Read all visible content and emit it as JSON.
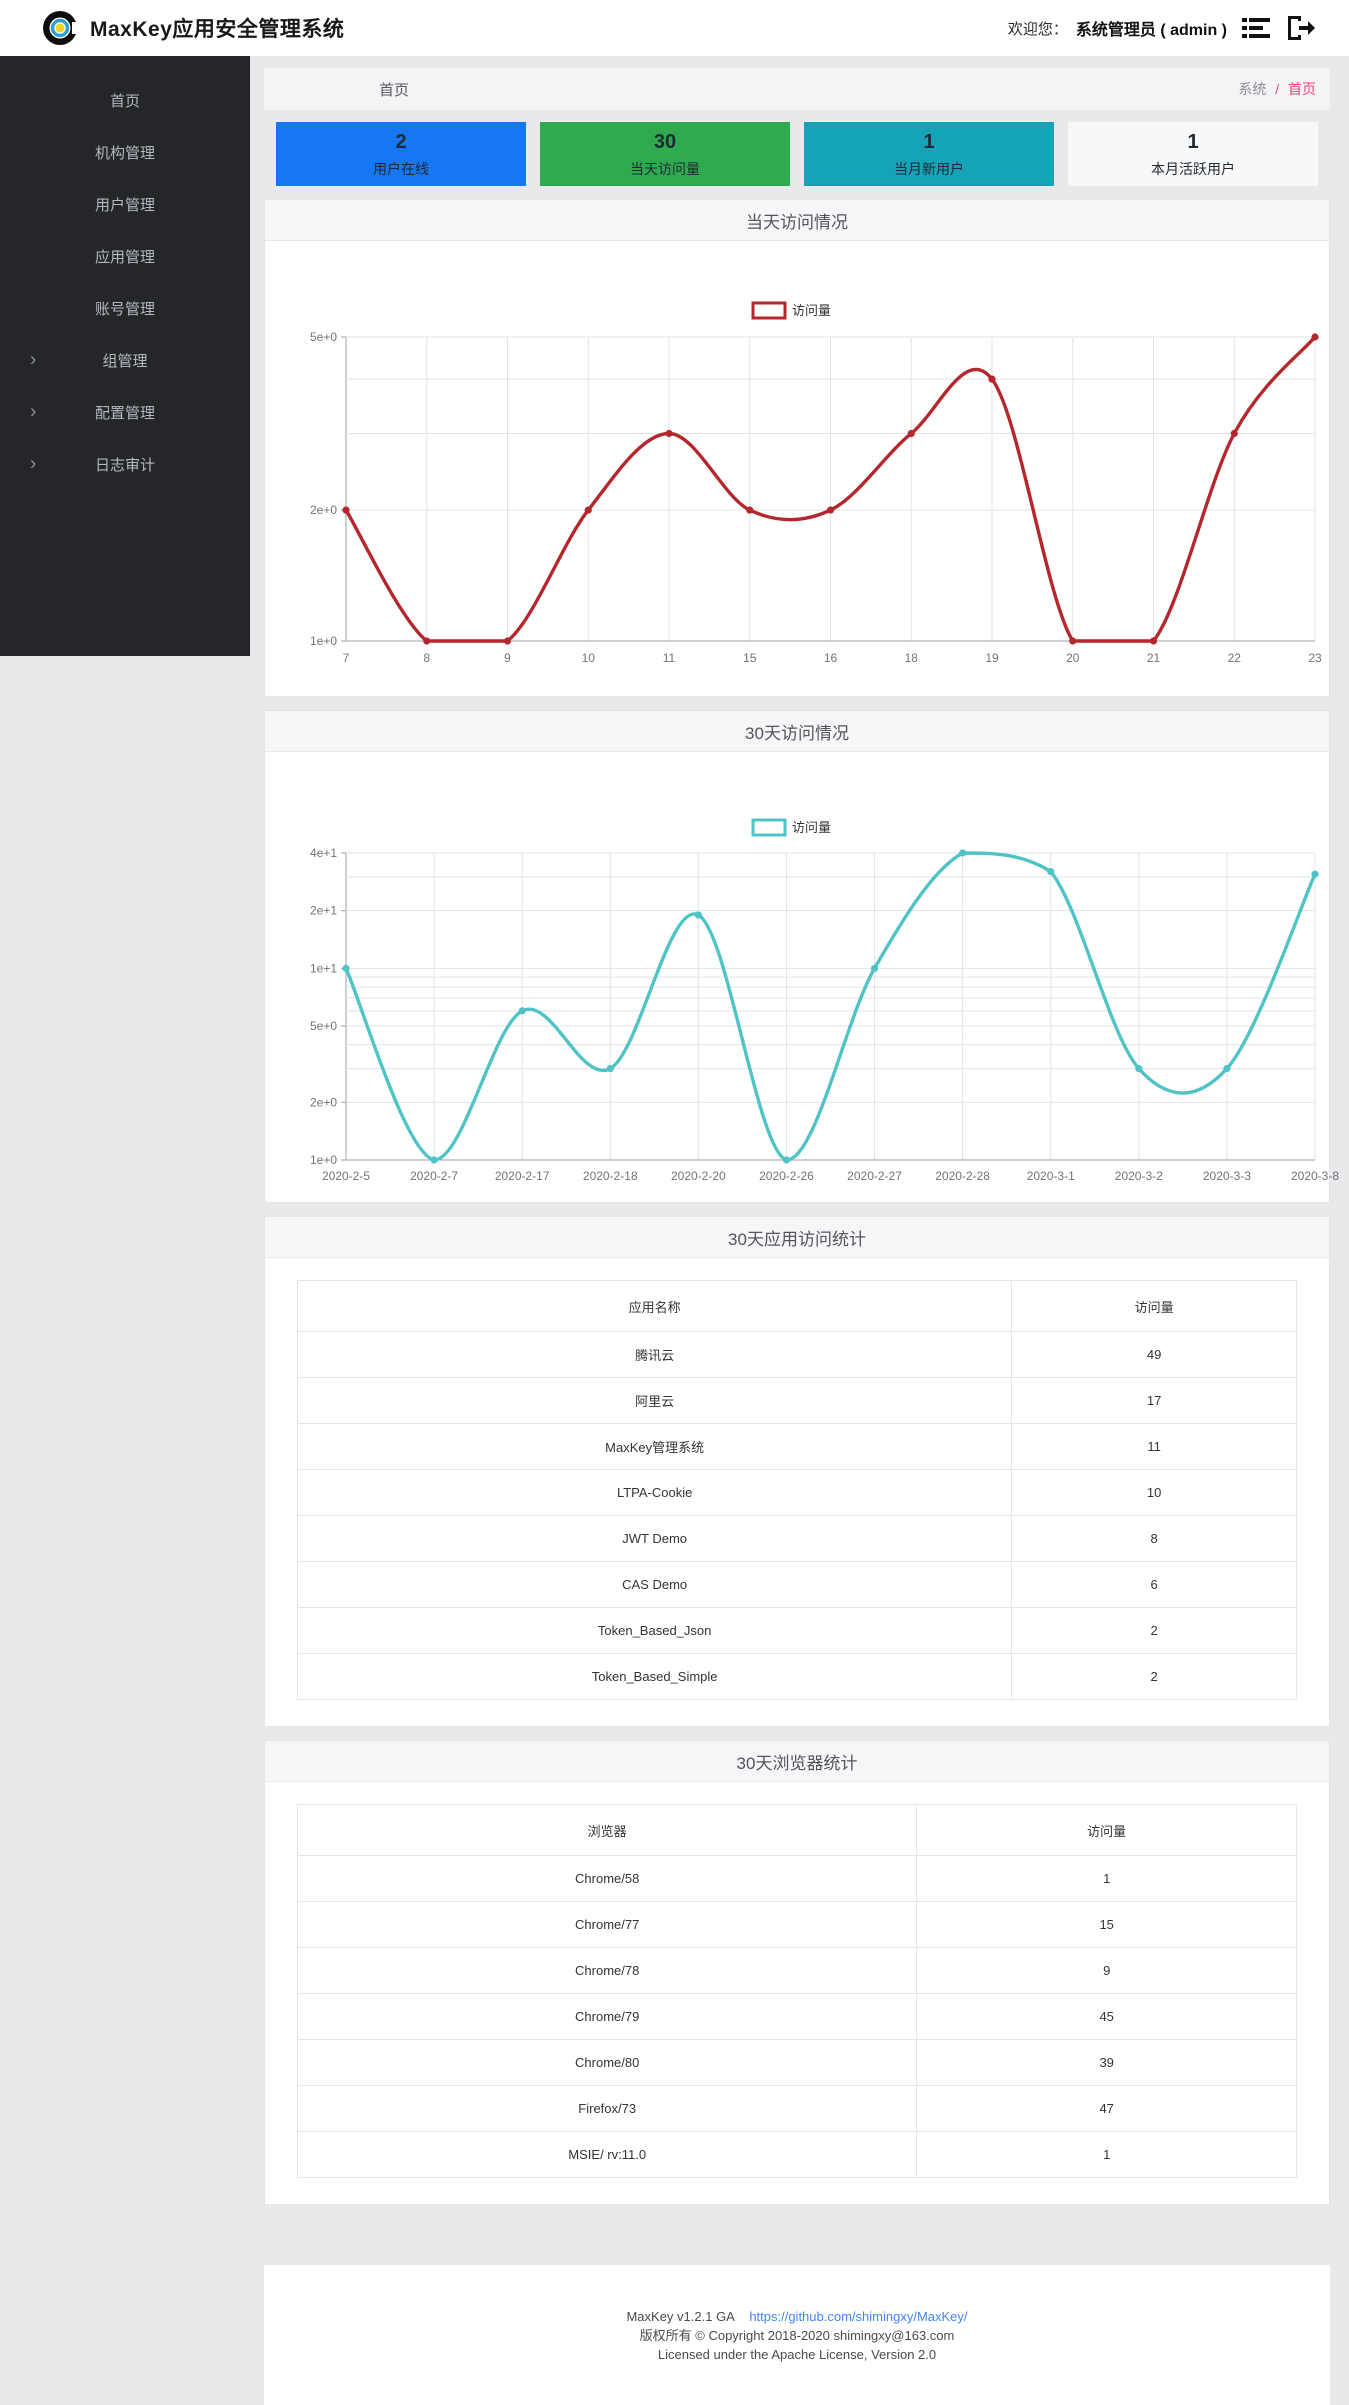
{
  "header": {
    "title": "MaxKey应用安全管理系统",
    "welcome_label": "欢迎您：",
    "user": "系统管理员 ( admin )"
  },
  "sidebar": {
    "items": [
      {
        "label": "首页",
        "slug": "home",
        "arrow": false
      },
      {
        "label": "机构管理",
        "slug": "org-management",
        "arrow": false
      },
      {
        "label": "用户管理",
        "slug": "user-management",
        "arrow": false
      },
      {
        "label": "应用管理",
        "slug": "app-management",
        "arrow": false
      },
      {
        "label": "账号管理",
        "slug": "account-management",
        "arrow": false
      },
      {
        "label": "组管理",
        "slug": "group-management",
        "arrow": true
      },
      {
        "label": "配置管理",
        "slug": "config-management",
        "arrow": true
      },
      {
        "label": "日志审计",
        "slug": "log-audit",
        "arrow": true
      }
    ]
  },
  "breadcrumb": {
    "page_title": "首页",
    "root": "系统",
    "separator": "/",
    "current": "首页"
  },
  "stat_cards": [
    {
      "value": "2",
      "label": "用户在线",
      "color": "#1577f2"
    },
    {
      "value": "30",
      "label": "当天访问量",
      "color": "#2faa4f"
    },
    {
      "value": "1",
      "label": "当月新用户",
      "color": "#15a3b8"
    },
    {
      "value": "1",
      "label": "本月活跃用户",
      "color": "#f8f8f9"
    }
  ],
  "chart_data": [
    {
      "type": "line",
      "title": "当天访问情况",
      "legend": "访问量",
      "color": "#b5272d",
      "yscale": "log",
      "ylim": [
        1,
        5
      ],
      "x": [
        "7",
        "8",
        "9",
        "10",
        "11",
        "15",
        "16",
        "18",
        "19",
        "20",
        "21",
        "22",
        "23"
      ],
      "values": [
        2,
        1,
        1,
        2,
        3,
        2,
        2,
        3,
        4,
        1,
        1,
        3,
        5
      ],
      "yticks": [
        {
          "v": 5,
          "label": "5e+0"
        },
        {
          "v": 2,
          "label": "2e+0"
        },
        {
          "v": 1,
          "label": "1e+0"
        }
      ],
      "grid_y": [
        1,
        2,
        3,
        4,
        5
      ]
    },
    {
      "type": "line",
      "title": "30天访问情况",
      "legend": "访问量",
      "color": "#4fc3c6",
      "yscale": "log",
      "ylim": [
        1,
        40
      ],
      "x": [
        "2020-2-5",
        "2020-2-7",
        "2020-2-17",
        "2020-2-18",
        "2020-2-20",
        "2020-2-26",
        "2020-2-27",
        "2020-2-28",
        "2020-3-1",
        "2020-3-2",
        "2020-3-3",
        "2020-3-8"
      ],
      "values": [
        10,
        1,
        6,
        3,
        19,
        1,
        10,
        40,
        32,
        3,
        3,
        31
      ],
      "yticks": [
        {
          "v": 40,
          "label": "4e+1"
        },
        {
          "v": 20,
          "label": "2e+1"
        },
        {
          "v": 10,
          "label": "1e+1"
        },
        {
          "v": 5,
          "label": "5e+0"
        },
        {
          "v": 2,
          "label": "2e+0"
        },
        {
          "v": 1,
          "label": "1e+0"
        }
      ],
      "grid_y": [
        1,
        2,
        3,
        4,
        5,
        6,
        7,
        8,
        9,
        10,
        20,
        30,
        40
      ]
    },
    {
      "type": "table",
      "title": "30天应用访问统计",
      "columns": [
        "应用名称",
        "访问量"
      ],
      "col1_width": "71.5%",
      "rows": [
        [
          "腾讯云",
          "49"
        ],
        [
          "阿里云",
          "17"
        ],
        [
          "MaxKey管理系统",
          "11"
        ],
        [
          "LTPA-Cookie",
          "10"
        ],
        [
          "JWT Demo",
          "8"
        ],
        [
          "CAS Demo",
          "6"
        ],
        [
          "Token_Based_Json",
          "2"
        ],
        [
          "Token_Based_Simple",
          "2"
        ]
      ]
    },
    {
      "type": "table",
      "title": "30天浏览器统计",
      "columns": [
        "浏览器",
        "访问量"
      ],
      "col1_width": "62%",
      "rows": [
        [
          "Chrome/58",
          "1"
        ],
        [
          "Chrome/77",
          "15"
        ],
        [
          "Chrome/78",
          "9"
        ],
        [
          "Chrome/79",
          "45"
        ],
        [
          "Chrome/80",
          "39"
        ],
        [
          "Firefox/73",
          "47"
        ],
        [
          "MSIE/ rv:11.0",
          "1"
        ]
      ]
    }
  ],
  "footer": {
    "version_text": "MaxKey  v1.2.1 GA",
    "link": "https://github.com/shimingxy/MaxKey/",
    "copyright": "版权所有 © Copyright 2018-2020 shimingxy@163.com",
    "license": "Licensed under the Apache License, Version 2.0"
  }
}
